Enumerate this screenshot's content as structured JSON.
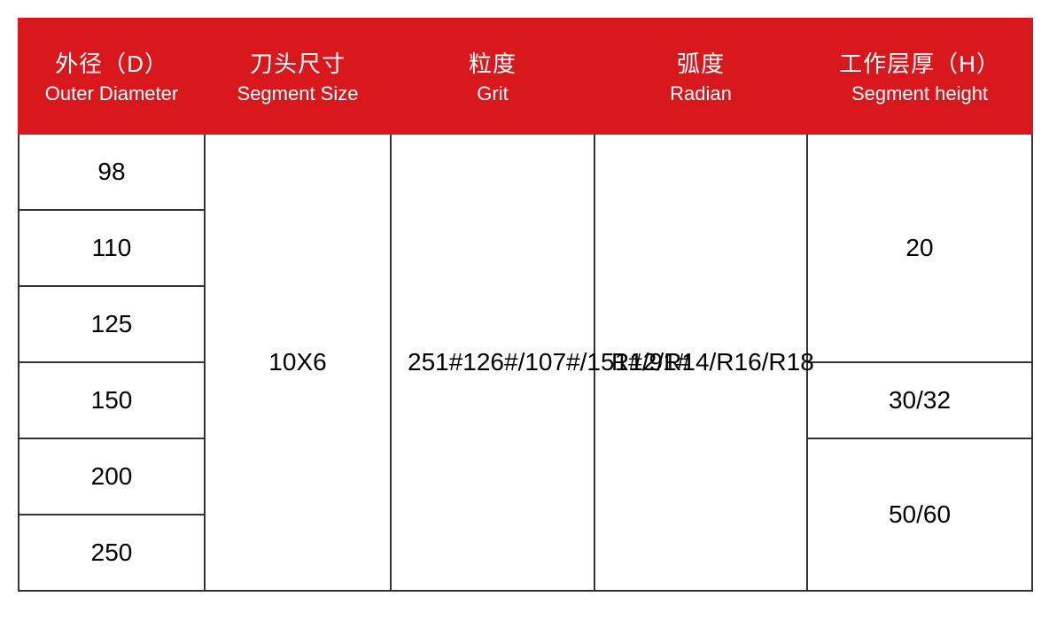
{
  "table": {
    "header_bg": "#d9181e",
    "header_fg": "#ffffff",
    "border_color": "#333333",
    "columns": [
      {
        "cn": "外径（D）",
        "en": "Outer Diameter"
      },
      {
        "cn": "刀头尺寸",
        "en": "Segment Size"
      },
      {
        "cn": "粒度",
        "en": "Grit"
      },
      {
        "cn": "弧度",
        "en": "Radian"
      },
      {
        "cn": "工作层厚（H）",
        "en": "Segment height"
      }
    ],
    "diameters": [
      "98",
      "110",
      "125",
      "150",
      "200",
      "250"
    ],
    "segment_size": "10X6",
    "grit": "251#126#/107#/151#/91#",
    "radian": "R12/R14/R16/R18",
    "segment_heights": [
      "20",
      "30/32",
      "50/60"
    ]
  }
}
